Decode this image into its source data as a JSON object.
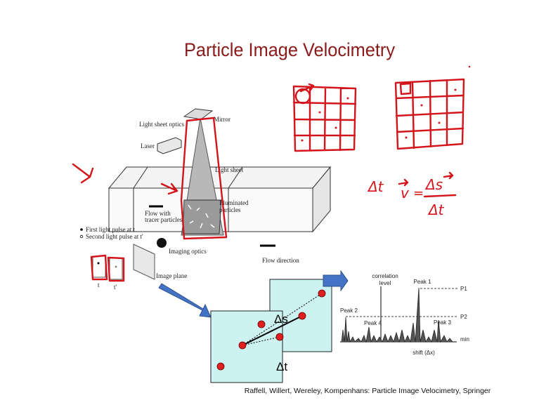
{
  "title": "Particle Image Velocimetry",
  "setup_diagram": {
    "light_sheet_optics": "Light sheet optics",
    "mirror": "Mirror",
    "laser": "Laser",
    "light_sheet": "Light sheet",
    "illuminated_particles": [
      "Illuminated",
      "particles"
    ],
    "flow_with_tracer_particles": [
      "Flow with",
      "tracer particles"
    ],
    "legend": [
      "First light pulse at t",
      "Second light pulse at t'"
    ],
    "imaging_optics": "Imaging optics",
    "flow_direction": "Flow direction",
    "image_plane": "Image plane",
    "frame_labels": [
      "t",
      "t'"
    ]
  },
  "image_pair": {
    "displacement": "Δs",
    "time_step": "Δt"
  },
  "correlation_plot": {
    "y_label": [
      "correlation",
      "level"
    ],
    "x_label": "shift (Δx)",
    "peaks": [
      "Peak 1",
      "Peak 2",
      "Peak 3",
      "Peak 4"
    ],
    "levels": [
      "P1",
      "P2",
      "min"
    ]
  },
  "handwritten": {
    "time_step": "Δt",
    "velocity": "v",
    "equals": "=",
    "numerator": "Δs",
    "denominator": "Δt"
  },
  "citation": "Raffell, Willert, Wereley, Kompenhans: Particle Image Velocimetry, Springer"
}
